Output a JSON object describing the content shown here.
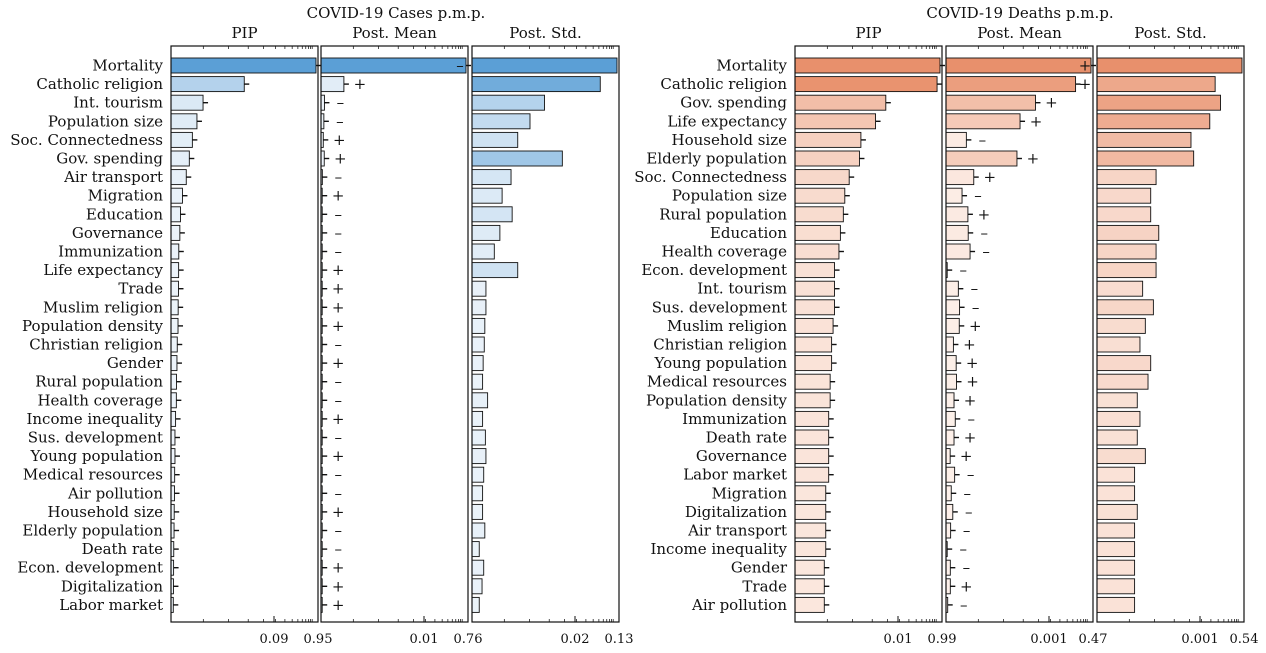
{
  "chart_data": [
    {
      "type": "bar",
      "title": "COVID-19 Cases p.m.p.",
      "color": "#5B9FD6",
      "pale_color": "#EEF4FA",
      "panel_titles": [
        "PIP",
        "Post. Mean",
        "Post. Std."
      ],
      "tick_labels": [
        [
          "0.09",
          "0.95"
        ],
        [
          "0.01",
          "0.76"
        ],
        [
          "0.02",
          "0.13"
        ]
      ],
      "categories": [
        "Mortality",
        "Catholic religion",
        "Int. tourism",
        "Population size",
        "Soc. Connectedness",
        "Gov. spending",
        "Air transport",
        "Migration",
        "Education",
        "Governance",
        "Immunization",
        "Life expectancy",
        "Trade",
        "Muslim religion",
        "Population density",
        "Christian religion",
        "Gender",
        "Rural population",
        "Health coverage",
        "Income inequality",
        "Sus. development",
        "Young population",
        "Medical resources",
        "Air pollution",
        "Household size",
        "Elderly population",
        "Death rate",
        "Econ. development",
        "Digitalization",
        "Labor market"
      ],
      "pip": [
        0.95,
        0.48,
        0.21,
        0.17,
        0.14,
        0.12,
        0.1,
        0.075,
        0.062,
        0.058,
        0.051,
        0.05,
        0.049,
        0.047,
        0.046,
        0.041,
        0.039,
        0.036,
        0.035,
        0.03,
        0.026,
        0.026,
        0.024,
        0.023,
        0.021,
        0.02,
        0.018,
        0.017,
        0.016,
        0.015
      ],
      "post_mean": [
        0.76,
        0.12,
        0.018,
        0.015,
        0.012,
        0.017,
        0.007,
        0.006,
        0.006,
        0.005,
        0.004,
        0.006,
        0.0035,
        0.0034,
        0.0033,
        0.0012,
        0.0027,
        0.0025,
        0.003,
        0.0026,
        0.0027,
        0.0029,
        0.0023,
        0.0021,
        0.0019,
        0.0019,
        0.0012,
        0.0016,
        0.0014,
        0.001
      ],
      "post_std": [
        0.13,
        0.115,
        0.065,
        0.052,
        0.041,
        0.081,
        0.035,
        0.027,
        0.036,
        0.025,
        0.02,
        0.041,
        0.0125,
        0.0125,
        0.0115,
        0.011,
        0.01,
        0.0095,
        0.014,
        0.0095,
        0.012,
        0.0125,
        0.0105,
        0.0095,
        0.0095,
        0.0115,
        0.0065,
        0.0105,
        0.009,
        0.0065
      ],
      "sign_markers": [
        "-",
        "+",
        "-",
        "-",
        "+",
        "+",
        "-",
        "+",
        "-",
        "-",
        "-",
        "+",
        "+",
        "+",
        "+",
        "-",
        "+",
        "-",
        "-",
        "+",
        "-",
        "+",
        "-",
        "-",
        "+",
        "-",
        "-",
        "+",
        "+",
        "+"
      ]
    },
    {
      "type": "bar",
      "title": "COVID-19 Deaths p.m.p.",
      "color": "#E8906C",
      "pale_color": "#FDF2EC",
      "panel_titles": [
        "PIP",
        "Post. Mean",
        "Post. Std."
      ],
      "tick_labels": [
        [
          "0.01",
          "0.99"
        ],
        [
          "0.001",
          "0.47"
        ],
        [
          "0.001",
          "0.54"
        ]
      ],
      "categories": [
        "Mortality",
        "Catholic religion",
        "Gov. spending",
        "Life expectancy",
        "Household size",
        "Elderly population",
        "Soc. Connectedness",
        "Population size",
        "Rural population",
        "Education",
        "Health coverage",
        "Econ. development",
        "Int. tourism",
        "Sus. development",
        "Muslim religion",
        "Christian religion",
        "Young population",
        "Medical resources",
        "Population density",
        "Immunization",
        "Death rate",
        "Governance",
        "Labor market",
        "Migration",
        "Digitalization",
        "Air transport",
        "Income inequality",
        "Gender",
        "Trade",
        "Air pollution"
      ],
      "pip": [
        0.99,
        0.97,
        0.62,
        0.55,
        0.45,
        0.44,
        0.37,
        0.34,
        0.33,
        0.31,
        0.3,
        0.27,
        0.27,
        0.27,
        0.26,
        0.25,
        0.25,
        0.24,
        0.24,
        0.23,
        0.23,
        0.23,
        0.23,
        0.21,
        0.21,
        0.21,
        0.21,
        0.2,
        0.2,
        0.2
      ],
      "post_mean": [
        0.47,
        0.42,
        0.29,
        0.24,
        0.066,
        0.23,
        0.09,
        0.052,
        0.071,
        0.072,
        0.078,
        0.0021,
        0.04,
        0.044,
        0.043,
        0.024,
        0.033,
        0.034,
        0.026,
        0.03,
        0.026,
        0.0135,
        0.028,
        0.017,
        0.022,
        0.015,
        0.0015,
        0.014,
        0.014,
        0.0055
      ],
      "post_std": [
        0.54,
        0.44,
        0.46,
        0.42,
        0.35,
        0.36,
        0.22,
        0.2,
        0.2,
        0.23,
        0.22,
        0.22,
        0.17,
        0.21,
        0.18,
        0.16,
        0.2,
        0.19,
        0.15,
        0.16,
        0.15,
        0.18,
        0.14,
        0.14,
        0.15,
        0.14,
        0.14,
        0.14,
        0.14,
        0.14
      ],
      "sign_markers": [
        "+",
        "+",
        "+",
        "+",
        "-",
        "+",
        "+",
        "-",
        "+",
        "-",
        "-",
        "-",
        "-",
        "-",
        "+",
        "+",
        "+",
        "+",
        "+",
        "-",
        "+",
        "+",
        "-",
        "-",
        "-",
        "-",
        "-",
        "-",
        "+",
        "-"
      ]
    }
  ]
}
